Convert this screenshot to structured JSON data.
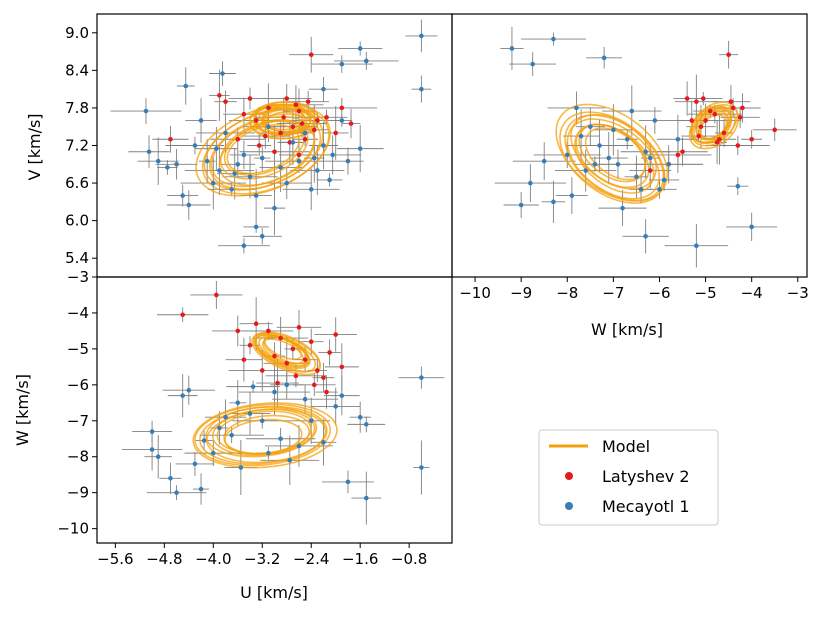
{
  "chart_data": [
    {
      "type": "scatter",
      "panel": "U-V",
      "xlabel": "",
      "ylabel": "V [km/s]",
      "xlim": [
        -5.9,
        -0.1
      ],
      "ylim": [
        5.1,
        9.3
      ],
      "y_ticks": [
        "5.4",
        "6.0",
        "6.6",
        "7.2",
        "7.8",
        "8.4",
        "9.0"
      ],
      "x_ticks": [],
      "series": [
        {
          "name": "Latyshev 2",
          "color": "#e41a1c",
          "points": [
            [
              -2.4,
              8.65
            ],
            [
              -3.8,
              7.9
            ],
            [
              -3.5,
              7.7
            ],
            [
              -3.1,
              7.8
            ],
            [
              -2.8,
              7.95
            ],
            [
              -2.6,
              7.75
            ],
            [
              -2.3,
              7.6
            ],
            [
              -2.9,
              7.4
            ],
            [
              -3.3,
              7.6
            ],
            [
              -2.7,
              7.5
            ],
            [
              -2.5,
              7.3
            ],
            [
              -3.0,
              7.1
            ],
            [
              -2.2,
              7.2
            ],
            [
              -1.9,
              7.8
            ],
            [
              -2.6,
              7.05
            ],
            [
              -3.6,
              7.3
            ],
            [
              -2.0,
              7.4
            ],
            [
              -2.45,
              7.9
            ],
            [
              -3.15,
              7.35
            ],
            [
              -2.75,
              7.25
            ],
            [
              -4.7,
              7.3
            ],
            [
              -3.9,
              8.0
            ],
            [
              -2.35,
              7.45
            ],
            [
              -3.4,
              7.95
            ],
            [
              -2.55,
              7.55
            ],
            [
              -2.85,
              7.65
            ],
            [
              -3.25,
              7.2
            ],
            [
              -2.15,
              7.65
            ],
            [
              -1.75,
              7.55
            ],
            [
              -2.65,
              7.85
            ]
          ]
        },
        {
          "name": "Mecayotl 1",
          "color": "#377eb8",
          "points": [
            [
              -5.1,
              7.75
            ],
            [
              -5.05,
              7.1
            ],
            [
              -4.9,
              6.95
            ],
            [
              -4.6,
              6.9
            ],
            [
              -4.5,
              6.4
            ],
            [
              -4.3,
              7.2
            ],
            [
              -4.2,
              7.6
            ],
            [
              -4.0,
              6.6
            ],
            [
              -3.9,
              6.8
            ],
            [
              -3.8,
              7.4
            ],
            [
              -3.7,
              6.5
            ],
            [
              -3.6,
              6.9
            ],
            [
              -3.5,
              7.05
            ],
            [
              -3.4,
              6.7
            ],
            [
              -3.3,
              6.4
            ],
            [
              -3.2,
              7.0
            ],
            [
              -3.1,
              7.5
            ],
            [
              -3.0,
              6.2
            ],
            [
              -2.9,
              6.85
            ],
            [
              -2.8,
              6.6
            ],
            [
              -2.7,
              7.25
            ],
            [
              -2.6,
              6.95
            ],
            [
              -2.5,
              7.4
            ],
            [
              -2.4,
              6.5
            ],
            [
              -2.3,
              6.8
            ],
            [
              -2.2,
              7.2
            ],
            [
              -2.1,
              6.65
            ],
            [
              -1.9,
              7.6
            ],
            [
              -1.6,
              7.15
            ],
            [
              -1.5,
              8.55
            ],
            [
              -1.6,
              8.75
            ],
            [
              -0.6,
              8.95
            ],
            [
              -0.6,
              8.1
            ],
            [
              -2.2,
              8.1
            ],
            [
              -1.9,
              8.5
            ],
            [
              -3.3,
              5.9
            ],
            [
              -3.5,
              5.6
            ],
            [
              -3.2,
              5.75
            ],
            [
              -4.4,
              6.25
            ],
            [
              -4.1,
              6.95
            ],
            [
              -3.95,
              7.15
            ],
            [
              -3.65,
              6.75
            ],
            [
              -2.05,
              7.05
            ],
            [
              -1.8,
              6.95
            ],
            [
              -2.35,
              7.0
            ],
            [
              -4.75,
              6.85
            ],
            [
              -3.85,
              8.35
            ],
            [
              -4.45,
              8.15
            ]
          ]
        }
      ]
    },
    {
      "type": "scatter",
      "panel": "W-V",
      "xlabel": "W [km/s]",
      "ylabel": "",
      "xlim": [
        -10.5,
        -2.8
      ],
      "ylim": [
        5.1,
        9.3
      ],
      "x_ticks": [
        "−10",
        "−9",
        "−8",
        "−7",
        "−6",
        "−5",
        "−4",
        "−3"
      ],
      "y_ticks": [],
      "series": [
        {
          "name": "Latyshev 2",
          "color": "#e41a1c",
          "points": [
            [
              -4.5,
              8.65
            ],
            [
              -5.2,
              7.9
            ],
            [
              -4.8,
              7.7
            ],
            [
              -4.4,
              7.8
            ],
            [
              -5.4,
              7.95
            ],
            [
              -4.9,
              7.75
            ],
            [
              -5.0,
              7.6
            ],
            [
              -4.6,
              7.4
            ],
            [
              -5.3,
              7.6
            ],
            [
              -5.1,
              7.5
            ],
            [
              -4.7,
              7.3
            ],
            [
              -5.5,
              7.1
            ],
            [
              -4.3,
              7.2
            ],
            [
              -4.2,
              7.8
            ],
            [
              -5.6,
              7.05
            ],
            [
              -4.0,
              7.3
            ],
            [
              -3.5,
              7.45
            ],
            [
              -4.45,
              7.9
            ],
            [
              -5.15,
              7.35
            ],
            [
              -4.75,
              7.25
            ],
            [
              -6.2,
              6.8
            ],
            [
              -5.8,
              6.9
            ],
            [
              -4.25,
              7.65
            ],
            [
              -5.05,
              7.95
            ]
          ]
        },
        {
          "name": "Mecayotl 1",
          "color": "#377eb8",
          "points": [
            [
              -9.2,
              8.75
            ],
            [
              -8.3,
              8.9
            ],
            [
              -8.75,
              8.5
            ],
            [
              -7.2,
              8.6
            ],
            [
              -7.8,
              7.8
            ],
            [
              -7.5,
              7.5
            ],
            [
              -7.3,
              7.2
            ],
            [
              -7.1,
              7.0
            ],
            [
              -6.9,
              6.9
            ],
            [
              -6.7,
              7.3
            ],
            [
              -6.5,
              6.7
            ],
            [
              -6.3,
              7.1
            ],
            [
              -6.1,
              7.6
            ],
            [
              -6.0,
              6.5
            ],
            [
              -5.8,
              6.9
            ],
            [
              -7.6,
              6.8
            ],
            [
              -7.9,
              6.4
            ],
            [
              -8.3,
              6.3
            ],
            [
              -8.8,
              6.6
            ],
            [
              -9.0,
              6.25
            ],
            [
              -6.8,
              6.2
            ],
            [
              -6.4,
              6.5
            ],
            [
              -5.2,
              5.6
            ],
            [
              -6.3,
              5.75
            ],
            [
              -4.0,
              5.9
            ],
            [
              -4.3,
              6.55
            ],
            [
              -7.0,
              7.45
            ],
            [
              -6.6,
              7.75
            ],
            [
              -5.6,
              7.3
            ],
            [
              -7.4,
              6.9
            ],
            [
              -8.0,
              7.05
            ],
            [
              -5.9,
              6.65
            ],
            [
              -6.2,
              7.0
            ],
            [
              -7.7,
              7.35
            ],
            [
              -8.5,
              6.95
            ]
          ]
        }
      ]
    },
    {
      "type": "scatter",
      "panel": "U-W",
      "xlabel": "U [km/s]",
      "ylabel": "W [km/s]",
      "xlim": [
        -5.9,
        -0.1
      ],
      "ylim": [
        -10.4,
        -3.0
      ],
      "x_ticks": [
        "−5.6",
        "−4.8",
        "−4.0",
        "−3.2",
        "−2.4",
        "−1.6",
        "−0.8"
      ],
      "y_ticks": [
        "−10",
        "−9",
        "−8",
        "−7",
        "−6",
        "−5",
        "−4",
        "−3"
      ],
      "series": [
        {
          "name": "Latyshev 2",
          "color": "#e41a1c",
          "points": [
            [
              -4.5,
              -4.05
            ],
            [
              -3.95,
              -3.5
            ],
            [
              -3.3,
              -4.3
            ],
            [
              -3.1,
              -4.5
            ],
            [
              -2.9,
              -4.7
            ],
            [
              -2.7,
              -5.0
            ],
            [
              -2.5,
              -5.3
            ],
            [
              -2.3,
              -5.6
            ],
            [
              -2.6,
              -4.4
            ],
            [
              -2.8,
              -5.4
            ],
            [
              -3.0,
              -5.2
            ],
            [
              -3.4,
              -4.9
            ],
            [
              -2.4,
              -4.8
            ],
            [
              -2.1,
              -5.1
            ],
            [
              -2.2,
              -5.8
            ],
            [
              -1.9,
              -5.5
            ],
            [
              -2.0,
              -4.6
            ],
            [
              -3.2,
              -5.6
            ],
            [
              -3.5,
              -5.3
            ],
            [
              -2.35,
              -6.0
            ],
            [
              -2.65,
              -5.75
            ],
            [
              -3.6,
              -4.5
            ],
            [
              -2.95,
              -5.95
            ],
            [
              -2.15,
              -6.2
            ]
          ]
        },
        {
          "name": "Mecayotl 1",
          "color": "#377eb8",
          "points": [
            [
              -5.0,
              -7.3
            ],
            [
              -5.0,
              -7.8
            ],
            [
              -4.9,
              -8.0
            ],
            [
              -4.7,
              -8.6
            ],
            [
              -4.6,
              -9.0
            ],
            [
              -4.3,
              -8.2
            ],
            [
              -4.2,
              -8.9
            ],
            [
              -4.0,
              -7.9
            ],
            [
              -3.9,
              -7.2
            ],
            [
              -3.8,
              -6.9
            ],
            [
              -3.6,
              -6.5
            ],
            [
              -3.4,
              -6.8
            ],
            [
              -3.2,
              -7.0
            ],
            [
              -3.0,
              -6.2
            ],
            [
              -2.9,
              -7.5
            ],
            [
              -2.8,
              -6.0
            ],
            [
              -2.6,
              -7.7
            ],
            [
              -2.5,
              -6.4
            ],
            [
              -2.4,
              -7.0
            ],
            [
              -2.2,
              -7.6
            ],
            [
              -2.0,
              -6.6
            ],
            [
              -1.9,
              -6.3
            ],
            [
              -1.6,
              -6.9
            ],
            [
              -1.5,
              -7.1
            ],
            [
              -0.6,
              -5.8
            ],
            [
              -0.6,
              -8.3
            ],
            [
              -1.8,
              -8.7
            ],
            [
              -1.5,
              -9.15
            ],
            [
              -4.5,
              -6.3
            ],
            [
              -4.4,
              -6.15
            ],
            [
              -3.7,
              -7.4
            ],
            [
              -3.1,
              -7.9
            ],
            [
              -2.75,
              -8.1
            ],
            [
              -3.35,
              -6.05
            ],
            [
              -4.15,
              -7.55
            ],
            [
              -3.55,
              -8.3
            ]
          ]
        }
      ]
    }
  ],
  "legend": {
    "items": [
      {
        "label": "Model",
        "color": "#f5a00a",
        "marker": "line"
      },
      {
        "label": "Latyshev 2",
        "color": "#e41a1c",
        "marker": "dot"
      },
      {
        "label": "Mecayotl 1",
        "color": "#377eb8",
        "marker": "dot"
      }
    ]
  },
  "model_color": "#f5a00a",
  "errorbar_color": "#808080"
}
